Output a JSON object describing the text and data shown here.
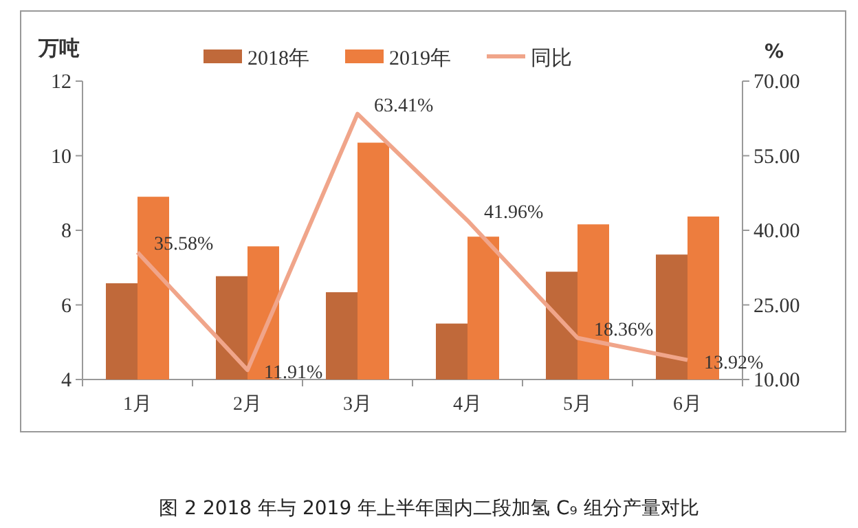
{
  "chart_data": {
    "type": "bar",
    "title": "图 2  2018 年与 2019 年上半年国内二段加氢 C₉ 组分产量对比",
    "ylabel": "万吨",
    "y2label": "%",
    "categories": [
      "1月",
      "2月",
      "3月",
      "4月",
      "5月",
      "6月"
    ],
    "series": [
      {
        "name": "2018年",
        "color": "#c0693a",
        "values": [
          6.58,
          6.77,
          6.34,
          5.5,
          6.89,
          7.35
        ]
      },
      {
        "name": "2019年",
        "color": "#ed7d3e",
        "values": [
          8.9,
          7.57,
          10.35,
          7.83,
          8.16,
          8.37
        ]
      },
      {
        "name": "同比",
        "type": "line",
        "axis": "y2",
        "color": "#f0a58a",
        "values": [
          35.58,
          11.91,
          63.41,
          41.96,
          18.36,
          13.92
        ],
        "value_labels": [
          "35.58%",
          "11.91%",
          "63.41%",
          "41.96%",
          "18.36%",
          "13.92%"
        ]
      }
    ],
    "ylim": [
      4,
      12
    ],
    "yticks": [
      4,
      6,
      8,
      10,
      12
    ],
    "y2lim": [
      10,
      70
    ],
    "y2ticks": [
      {
        "value": 10,
        "label": "10.00"
      },
      {
        "value": 25,
        "label": "25.00"
      },
      {
        "value": 40,
        "label": "40.00"
      },
      {
        "value": 55,
        "label": "55.00"
      },
      {
        "value": 70,
        "label": "70.00"
      }
    ],
    "legend": "top",
    "grid": false
  }
}
